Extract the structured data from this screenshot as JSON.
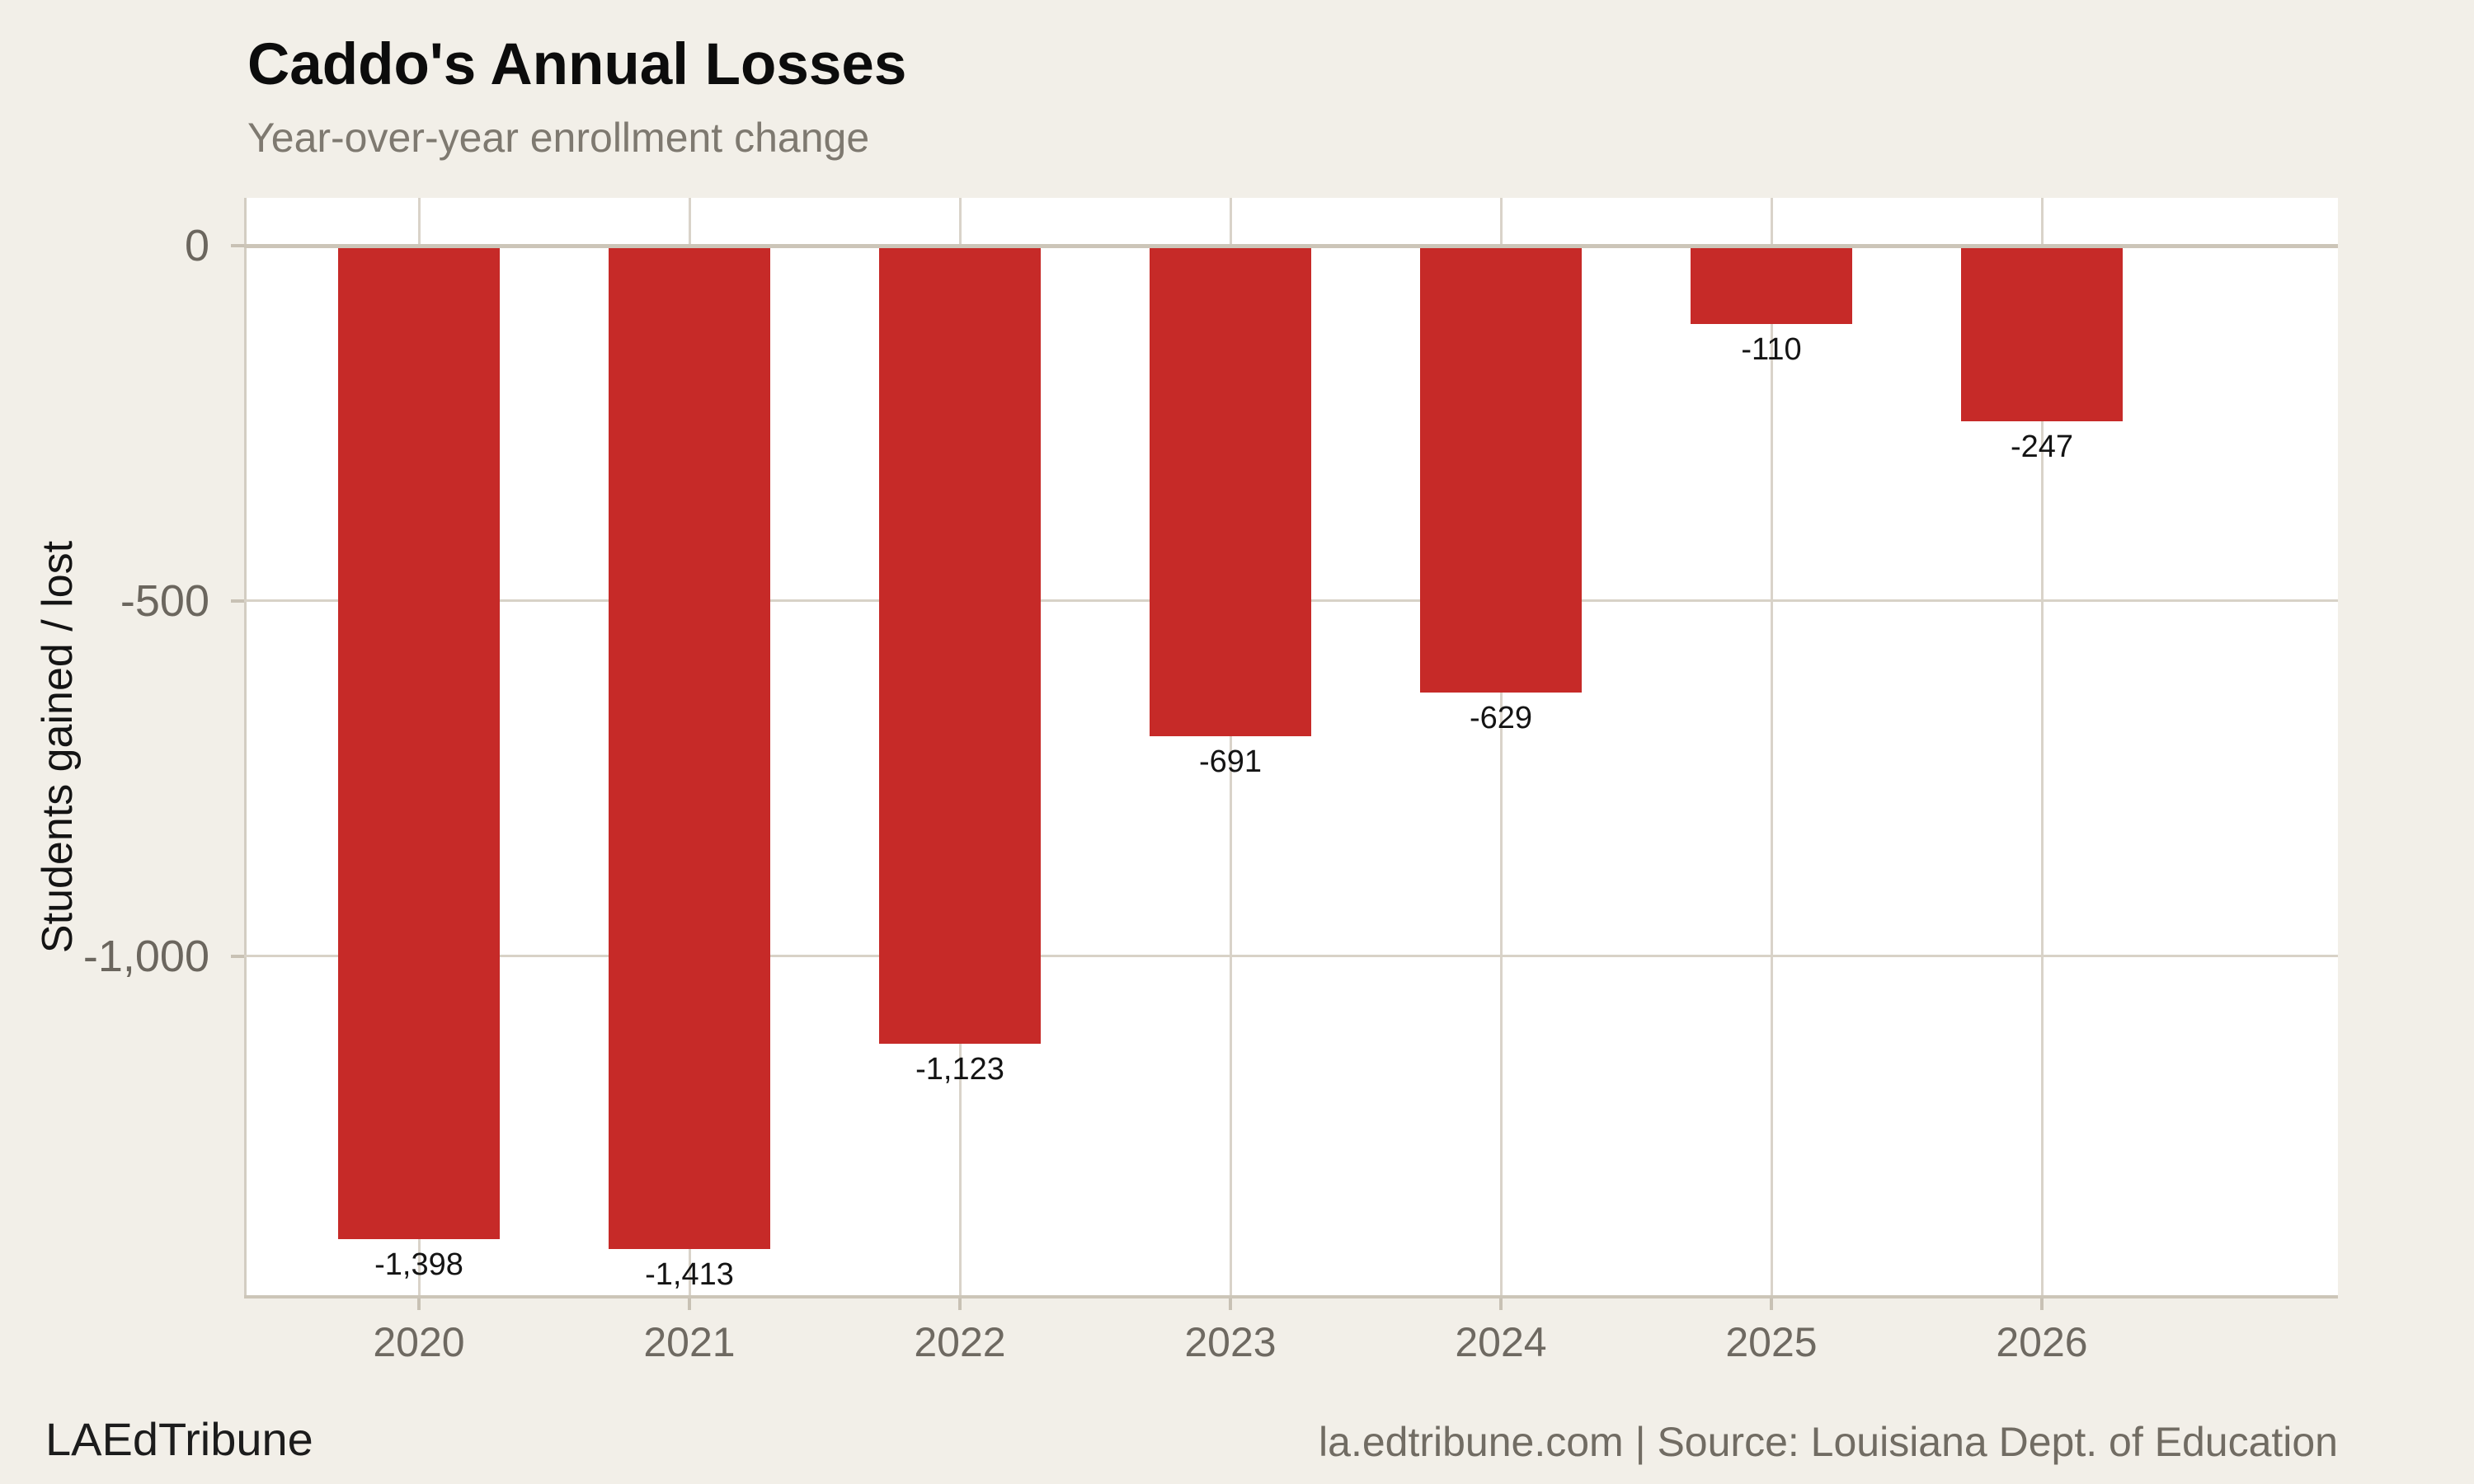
{
  "header": {
    "title": "Caddo's Annual Losses",
    "subtitle": "Year-over-year enrollment change"
  },
  "footer": {
    "left": "LAEdTribune",
    "right": "la.edtribune.com | Source: Louisiana Dept. of Education"
  },
  "colors": {
    "background": "#f2efe8",
    "plot_background": "#ffffff",
    "bar": "#c62a28",
    "zero_line": "#ccc5b8",
    "gridline": "#d8d2c7",
    "axis_text": "#6b665e",
    "value_label_text": "#141414"
  },
  "chart_data": {
    "type": "bar",
    "title": "Caddo's Annual Losses",
    "subtitle": "Year-over-year enrollment change",
    "categories": [
      "2020",
      "2021",
      "2022",
      "2023",
      "2024",
      "2025",
      "2026"
    ],
    "values": [
      -1398,
      -1413,
      -1123,
      -691,
      -629,
      -110,
      -247
    ],
    "value_labels": [
      "-1,398",
      "-1,413",
      "-1,123",
      "-691",
      "-629",
      "-110",
      "-247"
    ],
    "xlabel": "",
    "ylabel": "Students gained / lost",
    "yticks": [
      0,
      -500,
      -1000
    ],
    "ytick_labels": [
      "0",
      "-500",
      "-1,000"
    ],
    "ylim": [
      -1480,
      67
    ],
    "grid": true,
    "legend": null,
    "bar_color": "#c62a28"
  }
}
